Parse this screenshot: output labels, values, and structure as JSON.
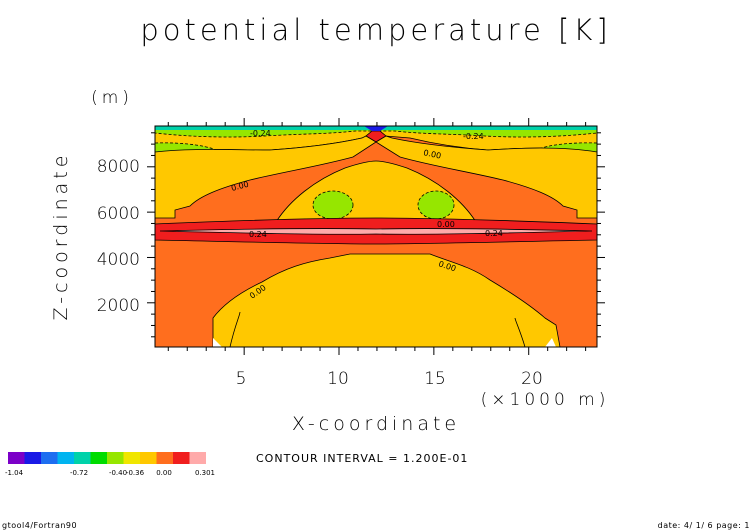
{
  "chart_data": {
    "type": "contour",
    "title": "potential temperature [K]",
    "xlabel": "X-coordinate",
    "x_unit": "(×1000 m)",
    "ylabel": "Z-coordinate",
    "y_unit": "(m)",
    "xlim": [
      0.3,
      23.6
    ],
    "ylim": [
      50,
      9800
    ],
    "xticks": [
      5,
      10,
      15,
      20
    ],
    "yticks": [
      2000,
      4000,
      6000,
      8000
    ],
    "grid": false,
    "contour_interval_text": "CONTOUR INTERVAL = 1.200E-01",
    "contour_labels": [
      {
        "text": "-0.24",
        "x": 5.5,
        "z": 9650
      },
      {
        "text": "-0.24",
        "x": 17.3,
        "z": 9650
      },
      {
        "text": "0.00",
        "x": 15.2,
        "z": 8500
      },
      {
        "text": "0.00",
        "x": 4.3,
        "z": 7700
      },
      {
        "text": "0.00",
        "x": 15.4,
        "z": 5550
      },
      {
        "text": "0.24",
        "x": 4.5,
        "z": 5150
      },
      {
        "text": "0.24",
        "x": 17.3,
        "z": 5150
      },
      {
        "text": "0.00",
        "x": 16.0,
        "z": 3950
      },
      {
        "text": "0.00",
        "x": 5.6,
        "z": 2500
      }
    ],
    "colorbar": {
      "colors": [
        "#7b00c8",
        "#1a1ae6",
        "#1e6ef0",
        "#00b4f0",
        "#00d2aa",
        "#00dc00",
        "#96e600",
        "#f0e600",
        "#ffc800",
        "#ff6e1e",
        "#f01e1e",
        "#ffaaaa"
      ],
      "tick_labels": [
        "-1.04",
        "-0.72",
        "-0.40",
        "-0.36",
        "0.00",
        "0.301"
      ]
    }
  },
  "footer": {
    "left": "gtool4/Fortran90",
    "right": "date: 4/ 1/ 6 page: 1"
  }
}
